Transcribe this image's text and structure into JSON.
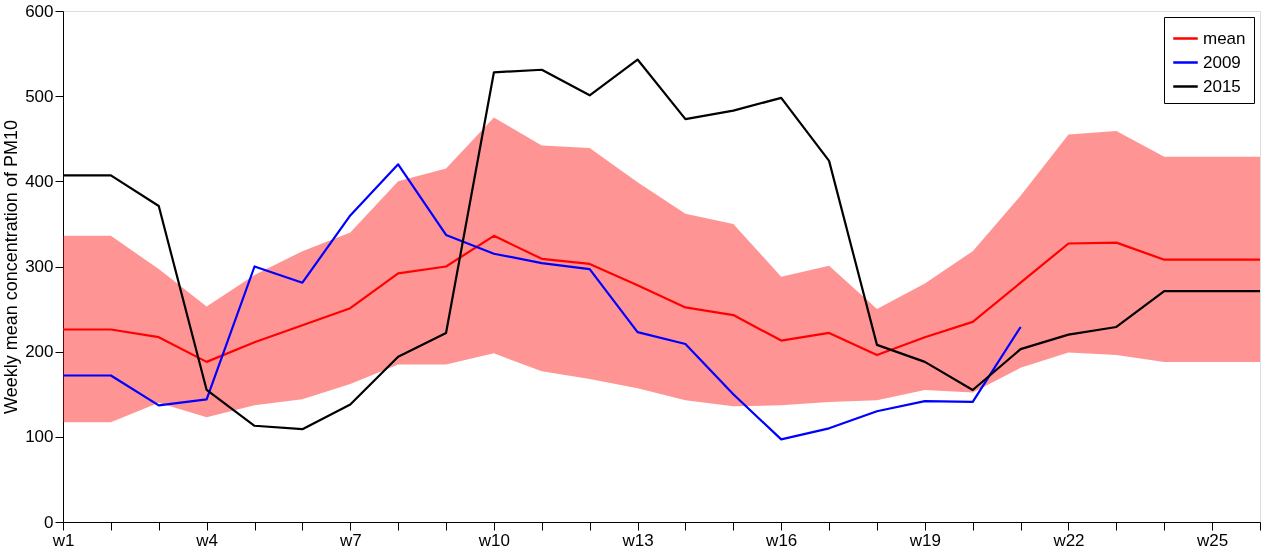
{
  "chart_data": {
    "type": "line",
    "ylabel": "Weekly mean concentration of PM10",
    "categories": [
      "w1",
      null,
      null,
      "w4",
      null,
      null,
      "w7",
      null,
      null,
      "w10",
      null,
      null,
      "w13",
      null,
      null,
      "w16",
      null,
      null,
      "w19",
      null,
      null,
      "w22",
      null,
      null,
      "w25",
      null
    ],
    "ylim": [
      0,
      600
    ],
    "yticks": [
      0,
      100,
      200,
      300,
      400,
      500,
      600
    ],
    "grid": false,
    "legend": "top right",
    "line_style": "solid",
    "marker": "none",
    "series": [
      {
        "name": "mean",
        "color": "#ff0000",
        "values": [
          226,
          226,
          217,
          188,
          211,
          231,
          251,
          292,
          300,
          336,
          309,
          303,
          278,
          252,
          243,
          213,
          222,
          196,
          217,
          235,
          281,
          327,
          328,
          308,
          308,
          308
        ],
        "lower": [
          117,
          117,
          140,
          123,
          137,
          144,
          162,
          185,
          185,
          198,
          177,
          168,
          157,
          143,
          136,
          137,
          141,
          143,
          155,
          152,
          181,
          199,
          196,
          188,
          188,
          188
        ],
        "upper": [
          336,
          336,
          297,
          253,
          290,
          318,
          340,
          400,
          415,
          475,
          442,
          439,
          399,
          362,
          350,
          288,
          301,
          250,
          280,
          318,
          383,
          455,
          459,
          429,
          429,
          429
        ]
      },
      {
        "name": "2009",
        "color": "#0000ff",
        "values": [
          172,
          172,
          137,
          144,
          300,
          281,
          360,
          420,
          337,
          315,
          304,
          297,
          223,
          209,
          150,
          97,
          110,
          130,
          142,
          141,
          229,
          null,
          null,
          null,
          null,
          null
        ]
      },
      {
        "name": "2015",
        "color": "#000000",
        "values": [
          407,
          407,
          371,
          155,
          113,
          109,
          138,
          194,
          222,
          528,
          531,
          501,
          543,
          473,
          483,
          498,
          424,
          208,
          188,
          155,
          203,
          220,
          229,
          271,
          271,
          271
        ]
      }
    ]
  }
}
